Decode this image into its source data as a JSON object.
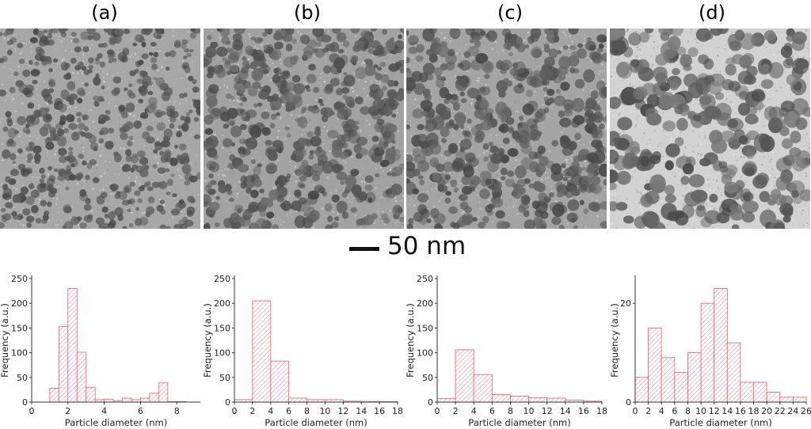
{
  "panels": [
    {
      "label": "(a)",
      "density": 520,
      "rmin": 2.5,
      "rmax": 6.0,
      "dark": 0.55,
      "bg": "#a7a7a7"
    },
    {
      "label": "(b)",
      "density": 560,
      "rmin": 2.5,
      "rmax": 7.5,
      "dark": 0.45,
      "bg": "#a2a2a2"
    },
    {
      "label": "(c)",
      "density": 520,
      "rmin": 3.0,
      "rmax": 8.0,
      "dark": 0.45,
      "bg": "#a4a4a4"
    },
    {
      "label": "(d)",
      "density": 280,
      "rmin": 5.0,
      "rmax": 11.0,
      "dark": 0.25,
      "bg": "#d2d2d2"
    }
  ],
  "scale_bar": {
    "label": "50 nm"
  },
  "colors": {
    "bar_stroke": "#e0707a",
    "hatch": "#e88a92",
    "axis": "#333333"
  },
  "chart_data": [
    {
      "type": "bar",
      "title": "",
      "xlabel": "Particle diameter (nm)",
      "ylabel": "Frequency (a.u.)",
      "xlim": [
        0,
        9.3
      ],
      "ylim": [
        0,
        250
      ],
      "xticks": [
        0,
        2,
        4,
        6,
        8
      ],
      "yticks": [
        0,
        50,
        100,
        150,
        200,
        250
      ],
      "bin_width": 0.5,
      "bins": [
        {
          "x0": 1.0,
          "value": 28
        },
        {
          "x0": 1.5,
          "value": 153
        },
        {
          "x0": 2.0,
          "value": 230
        },
        {
          "x0": 2.5,
          "value": 101
        },
        {
          "x0": 3.0,
          "value": 30
        },
        {
          "x0": 3.5,
          "value": 5
        },
        {
          "x0": 4.0,
          "value": 6
        },
        {
          "x0": 4.5,
          "value": 3
        },
        {
          "x0": 5.0,
          "value": 8
        },
        {
          "x0": 5.5,
          "value": 5
        },
        {
          "x0": 6.0,
          "value": 8
        },
        {
          "x0": 6.5,
          "value": 18
        },
        {
          "x0": 7.0,
          "value": 39
        },
        {
          "x0": 7.5,
          "value": 1
        },
        {
          "x0": 8.0,
          "value": 1
        },
        {
          "x0": 8.5,
          "value": 0
        }
      ]
    },
    {
      "type": "bar",
      "title": "",
      "xlabel": "Particle diameter (nm)",
      "ylabel": "Frequency (a.u.)",
      "xlim": [
        0,
        18
      ],
      "ylim": [
        0,
        250
      ],
      "xticks": [
        0,
        2,
        4,
        6,
        8,
        10,
        12,
        14,
        16,
        18
      ],
      "yticks": [
        0,
        50,
        100,
        150,
        200,
        250
      ],
      "bin_width": 2,
      "bins": [
        {
          "x0": 0,
          "value": 5
        },
        {
          "x0": 2,
          "value": 205
        },
        {
          "x0": 4,
          "value": 83
        },
        {
          "x0": 6,
          "value": 8
        },
        {
          "x0": 8,
          "value": 5
        },
        {
          "x0": 10,
          "value": 5
        },
        {
          "x0": 12,
          "value": 2
        },
        {
          "x0": 14,
          "value": 1
        },
        {
          "x0": 16,
          "value": 1
        }
      ]
    },
    {
      "type": "bar",
      "title": "",
      "xlabel": "Particle diameter (nm)",
      "ylabel": "Frequency (a.u.)",
      "xlim": [
        0,
        18
      ],
      "ylim": [
        0,
        250
      ],
      "xticks": [
        0,
        2,
        4,
        6,
        8,
        10,
        12,
        14,
        16,
        18
      ],
      "yticks": [
        0,
        50,
        100,
        150,
        200,
        250
      ],
      "bin_width": 2,
      "bins": [
        {
          "x0": 0,
          "value": 7
        },
        {
          "x0": 2,
          "value": 106
        },
        {
          "x0": 4,
          "value": 56
        },
        {
          "x0": 6,
          "value": 15
        },
        {
          "x0": 8,
          "value": 12
        },
        {
          "x0": 10,
          "value": 9
        },
        {
          "x0": 12,
          "value": 8
        },
        {
          "x0": 14,
          "value": 4
        },
        {
          "x0": 16,
          "value": 2
        }
      ]
    },
    {
      "type": "bar",
      "title": "",
      "xlabel": "Particle diameter (nm)",
      "ylabel": "Frequency (a.u.)",
      "xlim": [
        0,
        26
      ],
      "ylim": [
        0,
        25
      ],
      "xticks": [
        0,
        2,
        4,
        6,
        8,
        10,
        12,
        14,
        16,
        18,
        20,
        22,
        24,
        26
      ],
      "yticks": [
        0,
        20
      ],
      "bin_width": 2,
      "bins": [
        {
          "x0": 0,
          "value": 5
        },
        {
          "x0": 2,
          "value": 15
        },
        {
          "x0": 4,
          "value": 9
        },
        {
          "x0": 6,
          "value": 6
        },
        {
          "x0": 8,
          "value": 10
        },
        {
          "x0": 10,
          "value": 20
        },
        {
          "x0": 12,
          "value": 23
        },
        {
          "x0": 14,
          "value": 12
        },
        {
          "x0": 16,
          "value": 4
        },
        {
          "x0": 18,
          "value": 4
        },
        {
          "x0": 20,
          "value": 2
        },
        {
          "x0": 22,
          "value": 1
        },
        {
          "x0": 24,
          "value": 1
        }
      ]
    }
  ]
}
